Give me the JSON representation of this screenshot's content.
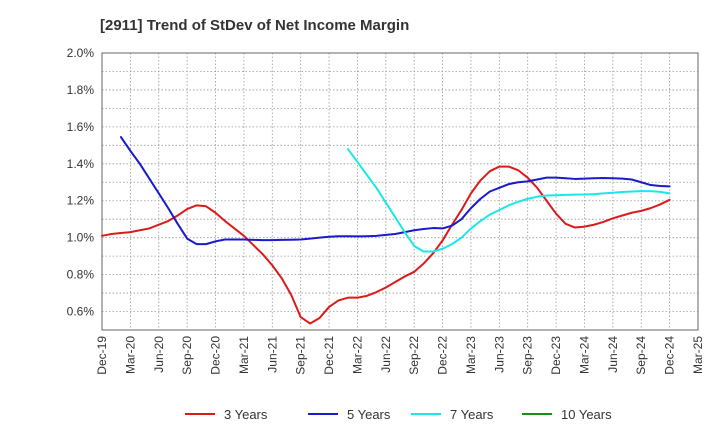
{
  "chart_data": {
    "type": "line",
    "title": "[2911]  Trend of StDev of Net Income Margin",
    "xlabel": "",
    "ylabel": "",
    "x_ticks": [
      "Dec-19",
      "Mar-20",
      "Jun-20",
      "Sep-20",
      "Dec-20",
      "Mar-21",
      "Jun-21",
      "Sep-21",
      "Dec-21",
      "Mar-22",
      "Jun-22",
      "Sep-22",
      "Dec-22",
      "Mar-23",
      "Jun-23",
      "Sep-23",
      "Dec-23",
      "Mar-24",
      "Jun-24",
      "Sep-24",
      "Dec-24",
      "Mar-25"
    ],
    "y_ticks": [
      "0.6%",
      "0.8%",
      "1.0%",
      "1.2%",
      "1.4%",
      "1.6%",
      "1.8%",
      "2.0%"
    ],
    "ylim": [
      0.5,
      2.0
    ],
    "y_unit": "%",
    "grid": true,
    "legend_position": "bottom",
    "series": [
      {
        "name": "3 Years",
        "color": "#dd1a1a",
        "points": [
          [
            "Dec-19",
            1.01
          ],
          [
            "Jan-20",
            1.02
          ],
          [
            "Feb-20",
            1.025
          ],
          [
            "Mar-20",
            1.03
          ],
          [
            "Apr-20",
            1.04
          ],
          [
            "May-20",
            1.05
          ],
          [
            "Jun-20",
            1.07
          ],
          [
            "Jul-20",
            1.09
          ],
          [
            "Aug-20",
            1.12
          ],
          [
            "Sep-20",
            1.155
          ],
          [
            "Oct-20",
            1.175
          ],
          [
            "Nov-20",
            1.17
          ],
          [
            "Dec-20",
            1.135
          ],
          [
            "Jan-21",
            1.09
          ],
          [
            "Feb-21",
            1.05
          ],
          [
            "Mar-21",
            1.01
          ],
          [
            "Apr-21",
            0.96
          ],
          [
            "May-21",
            0.91
          ],
          [
            "Jun-21",
            0.85
          ],
          [
            "Jul-21",
            0.78
          ],
          [
            "Aug-21",
            0.69
          ],
          [
            "Sep-21",
            0.57
          ],
          [
            "Oct-21",
            0.535
          ],
          [
            "Nov-21",
            0.565
          ],
          [
            "Dec-21",
            0.625
          ],
          [
            "Jan-22",
            0.66
          ],
          [
            "Feb-22",
            0.675
          ],
          [
            "Mar-22",
            0.675
          ],
          [
            "Apr-22",
            0.685
          ],
          [
            "May-22",
            0.705
          ],
          [
            "Jun-22",
            0.73
          ],
          [
            "Jul-22",
            0.76
          ],
          [
            "Aug-22",
            0.79
          ],
          [
            "Sep-22",
            0.815
          ],
          [
            "Oct-22",
            0.86
          ],
          [
            "Nov-22",
            0.915
          ],
          [
            "Dec-22",
            0.985
          ],
          [
            "Jan-23",
            1.07
          ],
          [
            "Feb-23",
            1.15
          ],
          [
            "Mar-23",
            1.24
          ],
          [
            "Apr-23",
            1.31
          ],
          [
            "May-23",
            1.36
          ],
          [
            "Jun-23",
            1.385
          ],
          [
            "Jul-23",
            1.385
          ],
          [
            "Aug-23",
            1.365
          ],
          [
            "Sep-23",
            1.325
          ],
          [
            "Oct-23",
            1.27
          ],
          [
            "Nov-23",
            1.2
          ],
          [
            "Dec-23",
            1.13
          ],
          [
            "Jan-24",
            1.075
          ],
          [
            "Feb-24",
            1.055
          ],
          [
            "Mar-24",
            1.06
          ],
          [
            "Apr-24",
            1.07
          ],
          [
            "May-24",
            1.085
          ],
          [
            "Jun-24",
            1.105
          ],
          [
            "Jul-24",
            1.12
          ],
          [
            "Aug-24",
            1.135
          ],
          [
            "Sep-24",
            1.145
          ],
          [
            "Oct-24",
            1.16
          ],
          [
            "Nov-24",
            1.18
          ],
          [
            "Dec-24",
            1.205
          ]
        ]
      },
      {
        "name": "5 Years",
        "color": "#1a1acc",
        "points": [
          [
            "Feb-20",
            1.545
          ],
          [
            "Mar-20",
            1.47
          ],
          [
            "Apr-20",
            1.4
          ],
          [
            "May-20",
            1.32
          ],
          [
            "Jun-20",
            1.24
          ],
          [
            "Jul-20",
            1.16
          ],
          [
            "Aug-20",
            1.075
          ],
          [
            "Sep-20",
            0.995
          ],
          [
            "Oct-20",
            0.965
          ],
          [
            "Nov-20",
            0.965
          ],
          [
            "Dec-20",
            0.98
          ],
          [
            "Jan-21",
            0.99
          ],
          [
            "Feb-21",
            0.99
          ],
          [
            "Mar-21",
            0.99
          ],
          [
            "Apr-21",
            0.988
          ],
          [
            "May-21",
            0.987
          ],
          [
            "Jun-21",
            0.987
          ],
          [
            "Jul-21",
            0.988
          ],
          [
            "Aug-21",
            0.989
          ],
          [
            "Sep-21",
            0.99
          ],
          [
            "Oct-21",
            0.995
          ],
          [
            "Nov-21",
            1.0
          ],
          [
            "Dec-21",
            1.005
          ],
          [
            "Jan-22",
            1.008
          ],
          [
            "Feb-22",
            1.008
          ],
          [
            "Mar-22",
            1.007
          ],
          [
            "Apr-22",
            1.008
          ],
          [
            "May-22",
            1.01
          ],
          [
            "Jun-22",
            1.015
          ],
          [
            "Jul-22",
            1.02
          ],
          [
            "Aug-22",
            1.03
          ],
          [
            "Sep-22",
            1.04
          ],
          [
            "Oct-22",
            1.047
          ],
          [
            "Nov-22",
            1.052
          ],
          [
            "Dec-22",
            1.05
          ],
          [
            "Jan-23",
            1.065
          ],
          [
            "Feb-23",
            1.1
          ],
          [
            "Mar-23",
            1.16
          ],
          [
            "Apr-23",
            1.21
          ],
          [
            "May-23",
            1.25
          ],
          [
            "Jun-23",
            1.27
          ],
          [
            "Jul-23",
            1.29
          ],
          [
            "Aug-23",
            1.3
          ],
          [
            "Sep-23",
            1.305
          ],
          [
            "Oct-23",
            1.315
          ],
          [
            "Nov-23",
            1.325
          ],
          [
            "Dec-23",
            1.325
          ],
          [
            "Jan-24",
            1.322
          ],
          [
            "Feb-24",
            1.318
          ],
          [
            "Mar-24",
            1.32
          ],
          [
            "Apr-24",
            1.322
          ],
          [
            "May-24",
            1.323
          ],
          [
            "Jun-24",
            1.322
          ],
          [
            "Jul-24",
            1.32
          ],
          [
            "Aug-24",
            1.315
          ],
          [
            "Sep-24",
            1.3
          ],
          [
            "Oct-24",
            1.285
          ],
          [
            "Nov-24",
            1.28
          ],
          [
            "Dec-24",
            1.278
          ]
        ]
      },
      {
        "name": "7 Years",
        "color": "#1ae8e8",
        "points": [
          [
            "Feb-22",
            1.48
          ],
          [
            "Mar-22",
            1.41
          ],
          [
            "Apr-22",
            1.34
          ],
          [
            "May-22",
            1.27
          ],
          [
            "Jun-22",
            1.19
          ],
          [
            "Jul-22",
            1.11
          ],
          [
            "Aug-22",
            1.03
          ],
          [
            "Sep-22",
            0.955
          ],
          [
            "Oct-22",
            0.925
          ],
          [
            "Nov-22",
            0.925
          ],
          [
            "Dec-22",
            0.94
          ],
          [
            "Jan-23",
            0.965
          ],
          [
            "Feb-23",
            1.0
          ],
          [
            "Mar-23",
            1.05
          ],
          [
            "Apr-23",
            1.09
          ],
          [
            "May-23",
            1.125
          ],
          [
            "Jun-23",
            1.15
          ],
          [
            "Jul-23",
            1.175
          ],
          [
            "Aug-23",
            1.195
          ],
          [
            "Sep-23",
            1.21
          ],
          [
            "Oct-23",
            1.222
          ],
          [
            "Nov-23",
            1.228
          ],
          [
            "Dec-23",
            1.23
          ],
          [
            "Jan-24",
            1.232
          ],
          [
            "Feb-24",
            1.233
          ],
          [
            "Mar-24",
            1.234
          ],
          [
            "Apr-24",
            1.236
          ],
          [
            "May-24",
            1.24
          ],
          [
            "Jun-24",
            1.243
          ],
          [
            "Jul-24",
            1.247
          ],
          [
            "Aug-24",
            1.25
          ],
          [
            "Sep-24",
            1.252
          ],
          [
            "Oct-24",
            1.252
          ],
          [
            "Nov-24",
            1.248
          ],
          [
            "Dec-24",
            1.24
          ]
        ]
      },
      {
        "name": "10 Years",
        "color": "#1a8c1a",
        "points": []
      }
    ]
  }
}
